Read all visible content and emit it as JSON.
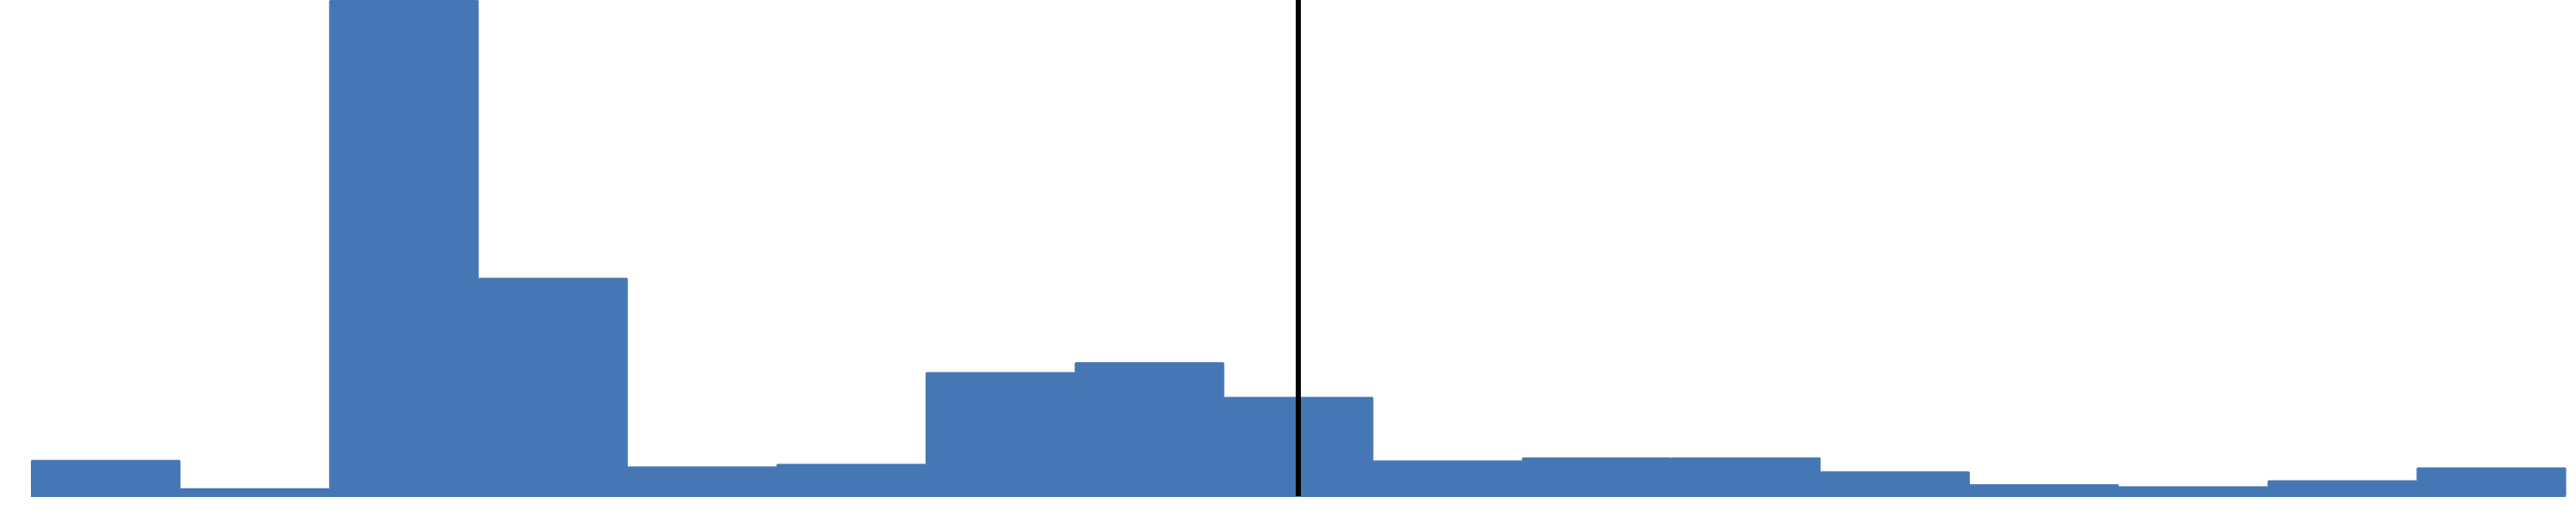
{
  "chart_data": {
    "type": "bar",
    "bins": 17,
    "values": [
      0.073,
      0.016,
      1.0,
      0.44,
      0.06,
      0.065,
      0.25,
      0.27,
      0.2,
      0.072,
      0.078,
      0.078,
      0.05,
      0.024,
      0.02,
      0.032,
      0.058
    ],
    "ylim": [
      0,
      1
    ],
    "marker_x": 8.5,
    "grid": false,
    "legend": "none",
    "colors": {
      "bar": "#4677b5",
      "marker": "#000000",
      "background": "#ffffff"
    }
  }
}
